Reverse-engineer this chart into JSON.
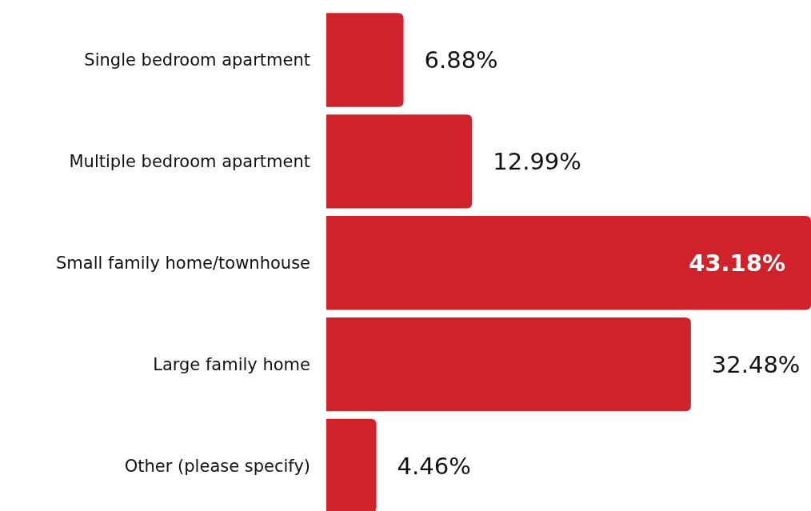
{
  "chart_data": {
    "type": "bar",
    "orientation": "horizontal",
    "categories": [
      "Single bedroom apartment",
      "Multiple bedroom apartment",
      "Small family home/townhouse",
      "Large family home",
      "Other (please specify)"
    ],
    "values": [
      6.88,
      12.99,
      43.18,
      32.48,
      4.46
    ],
    "value_labels": [
      "6.88%",
      "12.99%",
      "43.18%",
      "32.48%",
      "4.46%"
    ],
    "color": "#d0222a"
  }
}
